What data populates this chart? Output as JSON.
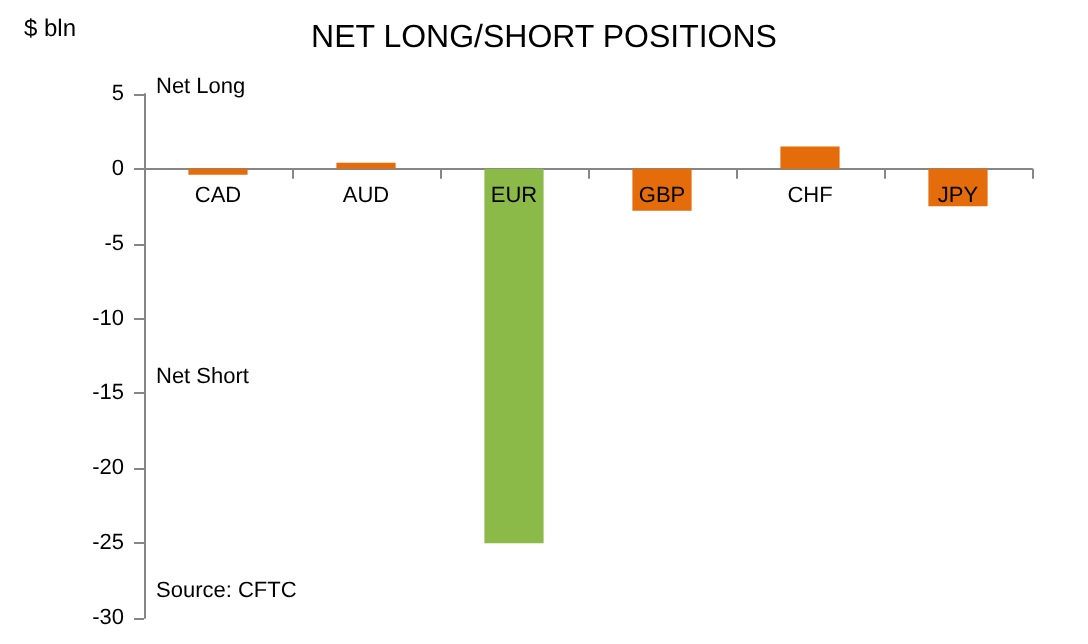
{
  "chart_data": {
    "type": "bar",
    "title": "NET LONG/SHORT POSITIONS",
    "ylabel": "$ bln",
    "categories": [
      "CAD",
      "AUD",
      "EUR",
      "GBP",
      "CHF",
      "JPY"
    ],
    "values": [
      -0.4,
      0.4,
      -25,
      -2.8,
      1.5,
      -2.5
    ],
    "colors": [
      "#e46c0a",
      "#e46c0a",
      "#8cba48",
      "#e46c0a",
      "#e46c0a",
      "#e46c0a"
    ],
    "ylim": [
      -30,
      5
    ],
    "yticks": [
      5,
      0,
      -5,
      -10,
      -15,
      -20,
      -25,
      -30
    ],
    "annotations": [
      "Net Long",
      "Net Short",
      "Source: CFTC"
    ]
  }
}
